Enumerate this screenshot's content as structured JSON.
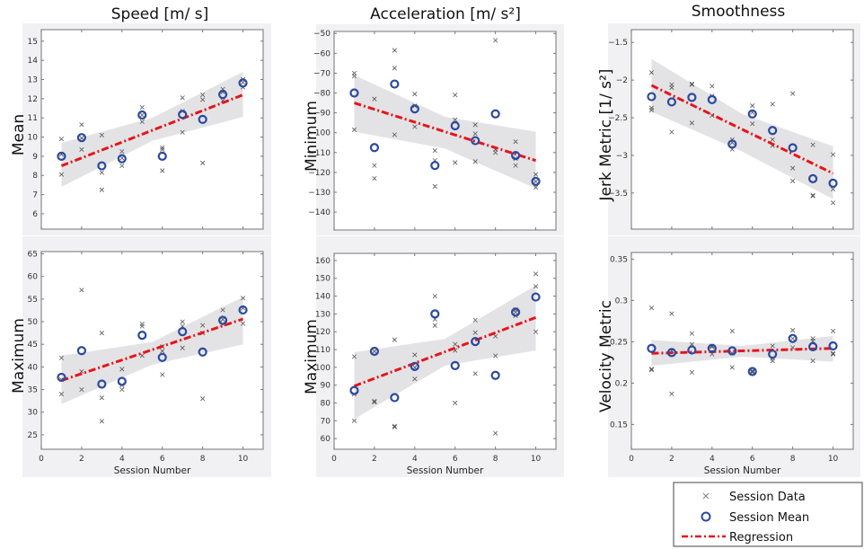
{
  "figure": {
    "column_titles": [
      "Speed [m/ s]",
      "Acceleration  [m/ s²]",
      "Smoothness"
    ],
    "legend": {
      "items": [
        {
          "label": "Session Data",
          "marker": "x-marker",
          "color": "#666666"
        },
        {
          "label": "Session Mean",
          "marker": "circle-marker",
          "color": "#2b4aa0"
        },
        {
          "label": "Regression",
          "marker": "dash-dot-line",
          "color": "#e8141b"
        }
      ]
    },
    "colors": {
      "data_marker": "#555555",
      "mean_marker": "#2b4aa0",
      "regression": "#e8141b",
      "ci_band": "#e3e3e5",
      "panel_bg": "#f1f1f3"
    }
  },
  "chart_data": [
    {
      "type": "scatter",
      "id": "speed-mean",
      "column_title": "Speed [m/ s]",
      "ylabel": "Mean",
      "xlabel": "",
      "xlim": [
        0,
        11
      ],
      "ylim": [
        5.2,
        15.6
      ],
      "xticks": [
        0,
        2,
        4,
        6,
        8,
        10
      ],
      "xticklabels_shown": false,
      "yticks": [
        6,
        7,
        8,
        9,
        10,
        11,
        12,
        13,
        14,
        15
      ],
      "session_data": [
        [
          1,
          9.9
        ],
        [
          1,
          8.05
        ],
        [
          1,
          9.1
        ],
        [
          2,
          10.65
        ],
        [
          2,
          9.35
        ],
        [
          2,
          9.95
        ],
        [
          3,
          10.1
        ],
        [
          3,
          8.15
        ],
        [
          3,
          7.25
        ],
        [
          4,
          9.25
        ],
        [
          4,
          8.5
        ],
        [
          4,
          8.9
        ],
        [
          5,
          11.55
        ],
        [
          5,
          10.8
        ],
        [
          5,
          11.15
        ],
        [
          6,
          9.45
        ],
        [
          6,
          9.35
        ],
        [
          6,
          8.25
        ],
        [
          7,
          12.05
        ],
        [
          7,
          11.35
        ],
        [
          7,
          10.25
        ],
        [
          8,
          12.2
        ],
        [
          8,
          11.95
        ],
        [
          8,
          8.65
        ],
        [
          9,
          12.5
        ],
        [
          9,
          11.9
        ],
        [
          9,
          12.35
        ],
        [
          10,
          13.0
        ],
        [
          10,
          12.6
        ],
        [
          10,
          12.85
        ]
      ],
      "session_mean": [
        [
          1,
          9.0
        ],
        [
          2,
          9.97
        ],
        [
          3,
          8.5
        ],
        [
          4,
          8.87
        ],
        [
          5,
          11.15
        ],
        [
          6,
          9.0
        ],
        [
          7,
          11.18
        ],
        [
          8,
          10.92
        ],
        [
          9,
          12.22
        ],
        [
          10,
          12.82
        ]
      ],
      "regression": {
        "x": [
          1,
          10
        ],
        "y": [
          8.5,
          12.2
        ]
      },
      "ci_band": {
        "x": [
          1,
          5.5,
          10
        ],
        "upper": [
          9.7,
          11.0,
          13.4
        ],
        "lower": [
          7.4,
          9.8,
          11.05
        ]
      }
    },
    {
      "type": "scatter",
      "id": "accel-min",
      "column_title": "Acceleration [m/ s²]",
      "ylabel": "Minimum",
      "xlabel": "",
      "xlim": [
        0,
        11
      ],
      "ylim": [
        -149,
        -49
      ],
      "xticks": [
        0,
        2,
        4,
        6,
        8,
        10
      ],
      "xticklabels_shown": false,
      "yticks": [
        -140,
        -130,
        -120,
        -110,
        -100,
        -90,
        -80,
        -70,
        -60,
        -50
      ],
      "session_data": [
        [
          1,
          -70
        ],
        [
          1,
          -71.5
        ],
        [
          1,
          -98.5
        ],
        [
          2,
          -83
        ],
        [
          2,
          -116.5
        ],
        [
          2,
          -123
        ],
        [
          3,
          -58.5
        ],
        [
          3,
          -67.5
        ],
        [
          3,
          -101
        ],
        [
          4,
          -80.5
        ],
        [
          4,
          -86.5
        ],
        [
          4,
          -97
        ],
        [
          5,
          -109
        ],
        [
          5,
          -114
        ],
        [
          5,
          -127
        ],
        [
          6,
          -81
        ],
        [
          6,
          -93.5
        ],
        [
          6,
          -115
        ],
        [
          7,
          -96
        ],
        [
          7,
          -100.5
        ],
        [
          7,
          -114.5
        ],
        [
          8,
          -53.5
        ],
        [
          8,
          -108.5
        ],
        [
          8,
          -110
        ],
        [
          9,
          -104.5
        ],
        [
          9,
          -113
        ],
        [
          9,
          -116.5
        ],
        [
          10,
          -121
        ],
        [
          10,
          -124.5
        ],
        [
          10,
          -127.5
        ]
      ],
      "session_mean": [
        [
          1,
          -80
        ],
        [
          2,
          -107.5
        ],
        [
          3,
          -75.5
        ],
        [
          4,
          -88
        ],
        [
          5,
          -116.5
        ],
        [
          6,
          -96.5
        ],
        [
          7,
          -104
        ],
        [
          8,
          -90.5
        ],
        [
          9,
          -111.5
        ],
        [
          10,
          -124.5
        ]
      ],
      "regression": {
        "x": [
          1,
          10
        ],
        "y": [
          -85,
          -114
        ]
      },
      "ci_band": {
        "x": [
          1,
          5.5,
          10
        ],
        "upper": [
          -71,
          -92,
          -99.5
        ],
        "lower": [
          -99.5,
          -108,
          -128
        ]
      }
    },
    {
      "type": "scatter",
      "id": "jerk-metric",
      "column_title": "Smoothness",
      "ylabel": "Jerk Metric [1/ s²]",
      "xlabel": "",
      "xlim": [
        0,
        11
      ],
      "ylim": [
        -3.98,
        -1.33
      ],
      "xticks": [
        0,
        2,
        4,
        6,
        8,
        10
      ],
      "xticklabels_shown": false,
      "yticks": [
        -3.5,
        -3,
        -2.5,
        -2,
        -1.5
      ],
      "session_data": [
        [
          1,
          -1.9
        ],
        [
          1,
          -2.37
        ],
        [
          1,
          -2.4
        ],
        [
          2,
          -2.06
        ],
        [
          2,
          -2.1
        ],
        [
          2,
          -2.69
        ],
        [
          3,
          -2.05
        ],
        [
          3,
          -2.06
        ],
        [
          3,
          -2.57
        ],
        [
          4,
          -2.08
        ],
        [
          4,
          -2.21
        ],
        [
          4,
          -2.47
        ],
        [
          5,
          -2.79
        ],
        [
          5,
          -2.83
        ],
        [
          5,
          -2.92
        ],
        [
          6,
          -2.34
        ],
        [
          6,
          -2.43
        ],
        [
          6,
          -2.58
        ],
        [
          7,
          -2.32
        ],
        [
          7,
          -2.79
        ],
        [
          7,
          -2.87
        ],
        [
          8,
          -2.18
        ],
        [
          8,
          -3.17
        ],
        [
          8,
          -3.34
        ],
        [
          9,
          -2.86
        ],
        [
          9,
          -3.53
        ],
        [
          9,
          -3.54
        ],
        [
          10,
          -2.99
        ],
        [
          10,
          -3.45
        ],
        [
          10,
          -3.63
        ]
      ],
      "session_mean": [
        [
          1,
          -2.22
        ],
        [
          2,
          -2.29
        ],
        [
          3,
          -2.23
        ],
        [
          4,
          -2.26
        ],
        [
          5,
          -2.85
        ],
        [
          6,
          -2.45
        ],
        [
          7,
          -2.67
        ],
        [
          8,
          -2.9
        ],
        [
          9,
          -3.31
        ],
        [
          10,
          -3.37
        ]
      ],
      "regression": {
        "x": [
          1,
          10
        ],
        "y": [
          -2.07,
          -3.24
        ]
      },
      "ci_band": {
        "x": [
          1,
          5.5,
          10
        ],
        "upper": [
          -1.72,
          -2.45,
          -2.88
        ],
        "lower": [
          -2.42,
          -2.95,
          -3.58
        ]
      }
    },
    {
      "type": "scatter",
      "id": "speed-max",
      "column_title": "Speed [m/ s]",
      "ylabel": "Maximum",
      "xlabel": "Session Number",
      "xlim": [
        0,
        11
      ],
      "ylim": [
        21.8,
        65.5
      ],
      "xticks": [
        0,
        2,
        4,
        6,
        8,
        10
      ],
      "xticklabels_shown": true,
      "yticks": [
        25,
        30,
        35,
        40,
        45,
        50,
        55,
        60,
        65
      ],
      "session_data": [
        [
          1,
          42
        ],
        [
          1,
          37.2
        ],
        [
          1,
          34
        ],
        [
          2,
          57
        ],
        [
          2,
          39
        ],
        [
          2,
          35
        ],
        [
          3,
          47.5
        ],
        [
          3,
          33.2
        ],
        [
          3,
          28
        ],
        [
          4,
          39.5
        ],
        [
          4,
          36
        ],
        [
          4,
          35
        ],
        [
          5,
          49.5
        ],
        [
          5,
          49
        ],
        [
          5,
          42.5
        ],
        [
          6,
          44.5
        ],
        [
          6,
          43.5
        ],
        [
          6,
          38.3
        ],
        [
          7,
          50
        ],
        [
          7,
          49
        ],
        [
          7,
          44.2
        ],
        [
          8,
          49.2
        ],
        [
          8,
          47.5
        ],
        [
          8,
          33
        ],
        [
          9,
          52.6
        ],
        [
          9,
          49.5
        ],
        [
          9,
          50.5
        ],
        [
          10,
          55.2
        ],
        [
          10,
          53
        ],
        [
          10,
          49.6
        ]
      ],
      "session_mean": [
        [
          1,
          37.7
        ],
        [
          2,
          43.6
        ],
        [
          3,
          36.2
        ],
        [
          4,
          36.8
        ],
        [
          5,
          47
        ],
        [
          6,
          42.1
        ],
        [
          7,
          47.8
        ],
        [
          8,
          43.3
        ],
        [
          9,
          50.3
        ],
        [
          10,
          52.6
        ]
      ],
      "regression": {
        "x": [
          1,
          10
        ],
        "y": [
          37.0,
          50.6
        ]
      },
      "ci_band": {
        "x": [
          1,
          5.5,
          10
        ],
        "upper": [
          42.5,
          45.5,
          55.5
        ],
        "lower": [
          31.8,
          40.5,
          45
        ]
      }
    },
    {
      "type": "scatter",
      "id": "accel-max",
      "column_title": "Acceleration [m/ s²]",
      "ylabel": "Maximum",
      "xlabel": "Session Number",
      "xlim": [
        0,
        11
      ],
      "ylim": [
        54,
        164
      ],
      "xticks": [
        0,
        2,
        4,
        6,
        8,
        10
      ],
      "xticklabels_shown": true,
      "yticks": [
        60,
        70,
        80,
        90,
        100,
        110,
        120,
        130,
        140,
        150,
        160
      ],
      "session_data": [
        [
          1,
          106
        ],
        [
          1,
          85
        ],
        [
          1,
          70
        ],
        [
          2,
          81
        ],
        [
          2,
          80.5
        ],
        [
          2,
          109
        ],
        [
          3,
          115.5
        ],
        [
          3,
          67
        ],
        [
          3,
          66.5
        ],
        [
          4,
          107
        ],
        [
          4,
          93.5
        ],
        [
          4,
          100
        ],
        [
          5,
          140
        ],
        [
          5,
          127
        ],
        [
          5,
          123.5
        ],
        [
          6,
          113
        ],
        [
          6,
          109.5
        ],
        [
          6,
          80
        ],
        [
          7,
          126.5
        ],
        [
          7,
          119.5
        ],
        [
          7,
          96.5
        ],
        [
          8,
          117.5
        ],
        [
          8,
          106.5
        ],
        [
          8,
          63
        ],
        [
          9,
          132.5
        ],
        [
          9,
          129
        ],
        [
          9,
          131
        ],
        [
          10,
          152.5
        ],
        [
          10,
          145.5
        ],
        [
          10,
          120
        ]
      ],
      "session_mean": [
        [
          1,
          87
        ],
        [
          2,
          109
        ],
        [
          3,
          83
        ],
        [
          4,
          100.5
        ],
        [
          5,
          130
        ],
        [
          6,
          101
        ],
        [
          7,
          114.5
        ],
        [
          8,
          95.5
        ],
        [
          9,
          131
        ],
        [
          10,
          139.5
        ]
      ],
      "regression": {
        "x": [
          1,
          10
        ],
        "y": [
          89.5,
          128
        ]
      },
      "ci_band": {
        "x": [
          1,
          5.5,
          10
        ],
        "upper": [
          108.5,
          116,
          146
        ],
        "lower": [
          71,
          101,
          109.5
        ]
      }
    },
    {
      "type": "scatter",
      "id": "velocity-metric",
      "column_title": "Smoothness",
      "ylabel": "Velocity Metric",
      "xlabel": "Session Number",
      "xlim": [
        0,
        11
      ],
      "ylim": [
        0.12,
        0.358
      ],
      "xticks": [
        0,
        2,
        4,
        6,
        8,
        10
      ],
      "xticklabels_shown": true,
      "yticks": [
        0.15,
        0.2,
        0.25,
        0.3,
        0.35
      ],
      "session_data": [
        [
          1,
          0.291
        ],
        [
          1,
          0.217
        ],
        [
          1,
          0.216
        ],
        [
          2,
          0.284
        ],
        [
          2,
          0.239
        ],
        [
          2,
          0.187
        ],
        [
          3,
          0.26
        ],
        [
          3,
          0.247
        ],
        [
          3,
          0.213
        ],
        [
          4,
          0.245
        ],
        [
          4,
          0.235
        ],
        [
          4,
          0.244
        ],
        [
          5,
          0.263
        ],
        [
          5,
          0.236
        ],
        [
          5,
          0.219
        ],
        [
          6,
          0.214
        ],
        [
          6,
          0.213
        ],
        [
          6,
          0.215
        ],
        [
          7,
          0.245
        ],
        [
          7,
          0.227
        ],
        [
          7,
          0.23
        ],
        [
          8,
          0.264
        ],
        [
          8,
          0.243
        ],
        [
          8,
          0.254
        ],
        [
          9,
          0.254
        ],
        [
          9,
          0.251
        ],
        [
          9,
          0.227
        ],
        [
          10,
          0.263
        ],
        [
          10,
          0.236
        ],
        [
          10,
          0.235
        ]
      ],
      "session_mean": [
        [
          1,
          0.242
        ],
        [
          2,
          0.237
        ],
        [
          3,
          0.24
        ],
        [
          4,
          0.242
        ],
        [
          5,
          0.239
        ],
        [
          6,
          0.214
        ],
        [
          7,
          0.235
        ],
        [
          8,
          0.254
        ],
        [
          9,
          0.244
        ],
        [
          10,
          0.245
        ]
      ],
      "regression": {
        "x": [
          1,
          10
        ],
        "y": [
          0.236,
          0.242
        ]
      },
      "ci_band": {
        "x": [
          1,
          5.5,
          10
        ],
        "upper": [
          0.252,
          0.245,
          0.257
        ],
        "lower": [
          0.221,
          0.232,
          0.226
        ]
      }
    }
  ]
}
